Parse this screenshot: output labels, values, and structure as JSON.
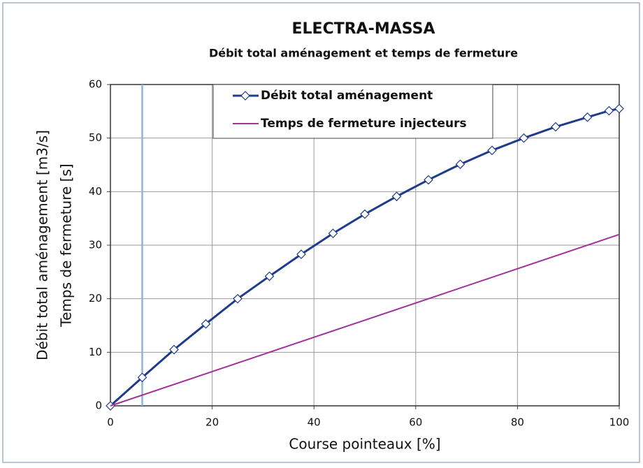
{
  "chart_data": {
    "type": "line",
    "title": "ELECTRA-MASSA",
    "subtitle": "Débit total aménagement et temps de fermeture",
    "x_label": "Course pointeaux [%]",
    "y_label": [
      "Débit total aménagement [m3/s]",
      "Temps de fermeture [s]"
    ],
    "xlim": [
      0,
      100
    ],
    "xticks": [
      0,
      20,
      40,
      60,
      80,
      100
    ],
    "ylim": [
      0,
      60
    ],
    "yticks": [
      0,
      10,
      20,
      30,
      40,
      50,
      60
    ],
    "grid": true,
    "legend": "top",
    "reference_line_x": 6.25,
    "reference_line_color": "#8fb4d6",
    "series": [
      {
        "name": "Débit total aménagement",
        "color": "#1f3c8c",
        "marker": "diamond",
        "x": [
          0,
          6.25,
          12.5,
          18.75,
          25,
          31.25,
          37.5,
          43.75,
          50,
          56.25,
          62.5,
          68.75,
          75,
          81.25,
          87.5,
          93.75,
          98,
          100
        ],
        "values": [
          0,
          5.3,
          10.5,
          15.3,
          20,
          24.2,
          28.3,
          32.2,
          35.8,
          39.1,
          42.2,
          45.1,
          47.7,
          50,
          52.1,
          53.9,
          55.1,
          55.5
        ]
      },
      {
        "name": "Temps de fermeture injecteurs",
        "color": "#a0329a",
        "marker": "none",
        "x": [
          0,
          100
        ],
        "values": [
          0,
          32
        ]
      }
    ]
  }
}
